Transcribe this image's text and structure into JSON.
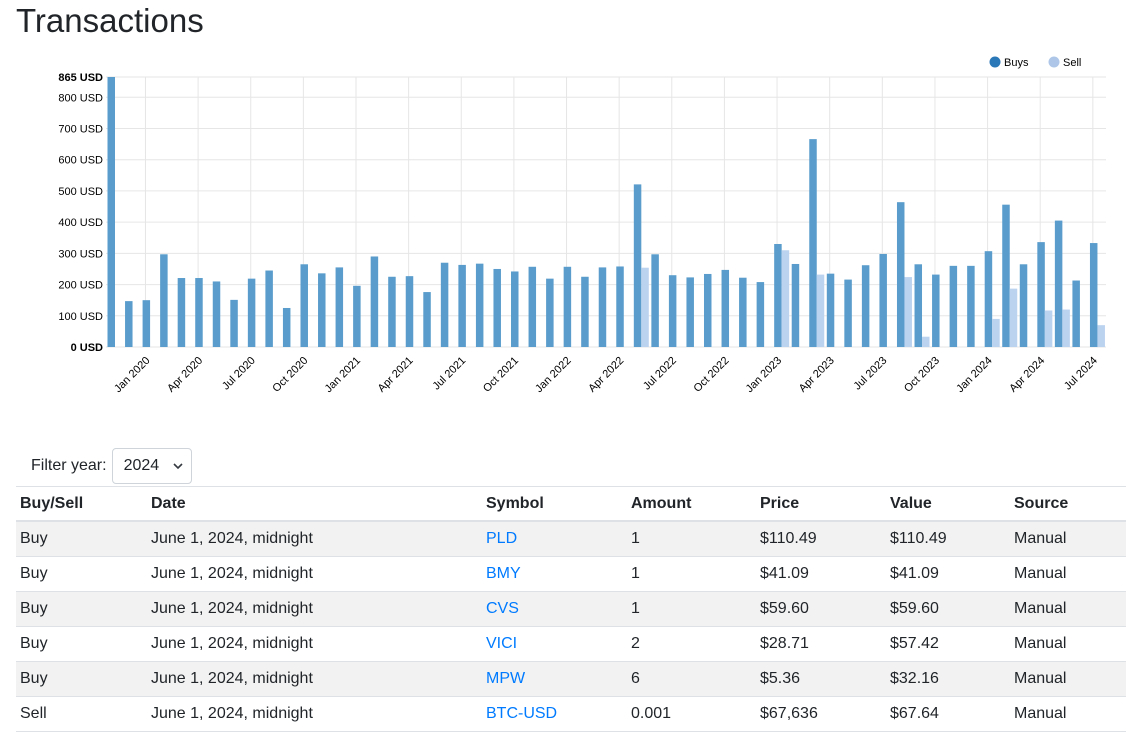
{
  "page": {
    "title": "Transactions"
  },
  "colors": {
    "buys": "#5a9dcc",
    "sell": "#bcd3ef",
    "buys_legend": "#2b78b8",
    "sell_legend": "#aec7e8",
    "grid": "#e6e6e6",
    "link": "#007bff"
  },
  "chart_data": {
    "type": "bar",
    "title": "",
    "xlabel": "",
    "ylabel": "",
    "ylim": [
      0,
      865
    ],
    "y_ticks": [
      0,
      100,
      200,
      300,
      400,
      500,
      600,
      700,
      800,
      865
    ],
    "y_tick_labels": [
      "0 USD",
      "100 USD",
      "200 USD",
      "300 USD",
      "400 USD",
      "500 USD",
      "600 USD",
      "700 USD",
      "800 USD",
      "865 USD"
    ],
    "x_tick_labels": [
      "Jan 2020",
      "Apr 2020",
      "Jul 2020",
      "Oct 2020",
      "Jan 2021",
      "Apr 2021",
      "Jul 2021",
      "Oct 2021",
      "Jan 2022",
      "Apr 2022",
      "Jul 2022",
      "Oct 2022",
      "Jan 2023",
      "Apr 2023",
      "Jul 2023",
      "Oct 2023",
      "Jan 2024",
      "Apr 2024",
      "Jul 2024"
    ],
    "legend_position": "top-right",
    "categories": [
      "Nov 2019",
      "Dec 2019",
      "Jan 2020",
      "Feb 2020",
      "Mar 2020",
      "Apr 2020",
      "May 2020",
      "Jun 2020",
      "Jul 2020",
      "Aug 2020",
      "Sep 2020",
      "Oct 2020",
      "Nov 2020",
      "Dec 2020",
      "Jan 2021",
      "Feb 2021",
      "Mar 2021",
      "Apr 2021",
      "May 2021",
      "Jun 2021",
      "Jul 2021",
      "Aug 2021",
      "Sep 2021",
      "Oct 2021",
      "Nov 2021",
      "Dec 2021",
      "Jan 2022",
      "Feb 2022",
      "Mar 2022",
      "Apr 2022",
      "May 2022",
      "Jun 2022",
      "Jul 2022",
      "Aug 2022",
      "Sep 2022",
      "Oct 2022",
      "Nov 2022",
      "Dec 2022",
      "Jan 2023",
      "Feb 2023",
      "Mar 2023",
      "Apr 2023",
      "May 2023",
      "Jun 2023",
      "Jul 2023",
      "Aug 2023",
      "Sep 2023",
      "Oct 2023",
      "Nov 2023",
      "Dec 2023",
      "Jan 2024",
      "Feb 2024",
      "Mar 2024",
      "Apr 2024",
      "May 2024",
      "Jun 2024",
      "Jul 2024"
    ],
    "series": [
      {
        "name": "Buys",
        "values": [
          865,
          147,
          150,
          297,
          221,
          221,
          210,
          151,
          219,
          245,
          125,
          265,
          236,
          255,
          196,
          290,
          225,
          227,
          176,
          270,
          263,
          267,
          250,
          242,
          257,
          219,
          257,
          225,
          255,
          258,
          521,
          297,
          230,
          223,
          234,
          247,
          222,
          208,
          330,
          266,
          666,
          235,
          216,
          262,
          298,
          464,
          265,
          232,
          260,
          260,
          307,
          456,
          265,
          336,
          405,
          213,
          333
        ]
      },
      {
        "name": "Sell",
        "values": [
          0,
          0,
          0,
          0,
          0,
          0,
          0,
          0,
          0,
          0,
          0,
          0,
          0,
          0,
          0,
          0,
          0,
          0,
          0,
          0,
          0,
          0,
          0,
          0,
          0,
          0,
          0,
          0,
          0,
          0,
          254,
          0,
          0,
          0,
          0,
          0,
          0,
          0,
          310,
          0,
          232,
          0,
          0,
          0,
          0,
          224,
          33,
          0,
          0,
          0,
          90,
          187,
          0,
          117,
          120,
          0,
          70
        ]
      }
    ]
  },
  "filter": {
    "label": "Filter year:",
    "selected": "2024"
  },
  "table": {
    "headers": [
      "Buy/Sell",
      "Date",
      "Symbol",
      "Amount",
      "Price",
      "Value",
      "Source"
    ],
    "rows": [
      [
        "Buy",
        "June 1, 2024, midnight",
        "PLD",
        "1",
        "$110.49",
        "$110.49",
        "Manual"
      ],
      [
        "Buy",
        "June 1, 2024, midnight",
        "BMY",
        "1",
        "$41.09",
        "$41.09",
        "Manual"
      ],
      [
        "Buy",
        "June 1, 2024, midnight",
        "CVS",
        "1",
        "$59.60",
        "$59.60",
        "Manual"
      ],
      [
        "Buy",
        "June 1, 2024, midnight",
        "VICI",
        "2",
        "$28.71",
        "$57.42",
        "Manual"
      ],
      [
        "Buy",
        "June 1, 2024, midnight",
        "MPW",
        "6",
        "$5.36",
        "$32.16",
        "Manual"
      ],
      [
        "Sell",
        "June 1, 2024, midnight",
        "BTC-USD",
        "0.001",
        "$67,636",
        "$67.64",
        "Manual"
      ]
    ]
  }
}
